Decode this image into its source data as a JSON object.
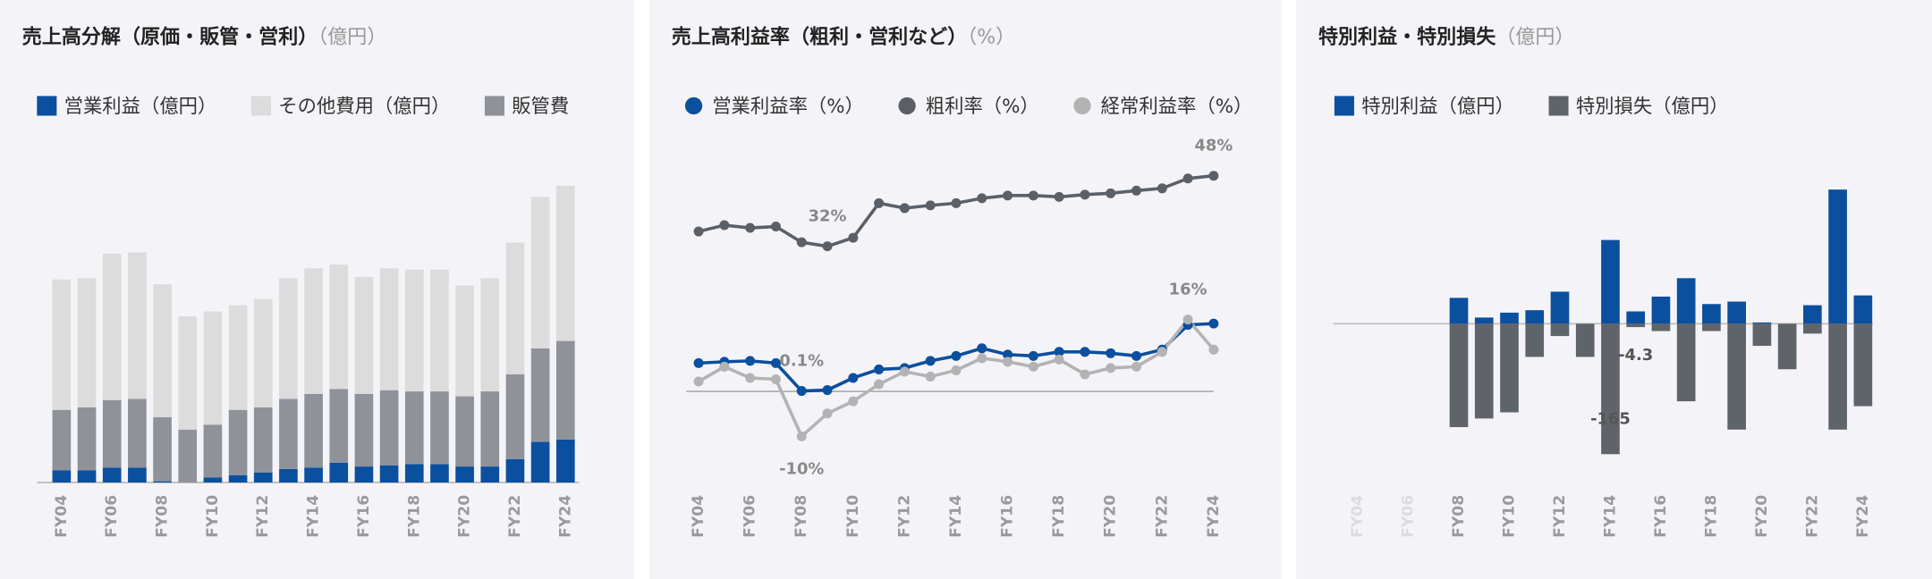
{
  "chart_data": [
    {
      "type": "stacked_bar",
      "title": "売上高分解（原価・販管・営利）",
      "subtitle": "（億円）",
      "categories": [
        "FY04",
        null,
        "FY06",
        null,
        "FY08",
        null,
        "FY10",
        null,
        "FY12",
        null,
        "FY14",
        null,
        "FY16",
        null,
        "FY18",
        null,
        "FY20",
        null,
        "FY22",
        null,
        "FY24"
      ],
      "series": [
        {
          "name": "営業利益（億円）",
          "color": "#0b4f9f",
          "values": [
            10,
            10,
            12,
            12,
            1,
            0,
            4,
            6,
            8,
            11,
            12,
            16,
            13,
            14,
            15,
            15,
            13,
            13,
            19,
            33,
            35
          ]
        },
        {
          "name": "その他費用（億円）",
          "color": "#dcdcdc",
          "values": [
            106,
            105,
            119,
            119,
            108,
            92,
            92,
            85,
            88,
            98,
            102,
            101,
            95,
            99,
            99,
            99,
            90,
            92,
            107,
            123,
            126
          ]
        },
        {
          "name": "販管費",
          "color": "#8f9399",
          "values": [
            49,
            51,
            55,
            56,
            52,
            43,
            43,
            53,
            53,
            57,
            60,
            60,
            59,
            61,
            59,
            59,
            57,
            61,
            69,
            76,
            80
          ]
        }
      ],
      "stack_order": [
        0,
        2,
        1
      ],
      "ylim": [
        0,
        260
      ]
    },
    {
      "type": "line",
      "title": "売上高利益率（粗利・営利など）",
      "subtitle": "（%）",
      "categories": [
        "FY04",
        null,
        "FY06",
        null,
        "FY08",
        null,
        "FY10",
        null,
        "FY12",
        null,
        "FY14",
        null,
        "FY16",
        null,
        "FY18",
        null,
        "FY20",
        null,
        "FY22",
        null,
        "FY24"
      ],
      "series": [
        {
          "name": "営業利益率（%）",
          "color": "#0b4f9f",
          "values": [
            6.3,
            6.6,
            6.8,
            6.3,
            0.1,
            0.3,
            3.0,
            4.9,
            5.2,
            6.8,
            7.9,
            9.6,
            8.2,
            7.9,
            8.8,
            8.8,
            8.5,
            7.9,
            9.3,
            14.8,
            15.1
          ],
          "value_labels": [
            null,
            null,
            null,
            null,
            "0.1%",
            null,
            null,
            null,
            null,
            null,
            null,
            null,
            null,
            null,
            null,
            null,
            null,
            null,
            null,
            null,
            null
          ]
        },
        {
          "name": "粗利率（%）",
          "color": "#5b6068",
          "values": [
            35.6,
            37.0,
            36.4,
            36.7,
            33.2,
            32.3,
            34.2,
            41.9,
            40.8,
            41.4,
            41.9,
            43.0,
            43.6,
            43.6,
            43.3,
            43.8,
            44.1,
            44.7,
            45.2,
            47.4,
            48
          ],
          "value_labels": [
            null,
            null,
            null,
            null,
            null,
            "32%",
            null,
            null,
            null,
            null,
            null,
            null,
            null,
            null,
            null,
            null,
            null,
            null,
            null,
            null,
            "48%"
          ]
        },
        {
          "name": "経常利益率（%）",
          "color": "#b3b3b3",
          "values": [
            2.2,
            5.5,
            3.0,
            2.7,
            -10,
            -4.9,
            -2.2,
            1.6,
            4.4,
            3.3,
            4.7,
            7.4,
            6.6,
            5.5,
            7.1,
            3.8,
            5.2,
            5.5,
            8.8,
            16,
            9.3
          ],
          "value_labels": [
            null,
            null,
            null,
            null,
            "-10%",
            null,
            null,
            null,
            null,
            null,
            null,
            null,
            null,
            null,
            null,
            null,
            null,
            null,
            null,
            "16%",
            null
          ]
        }
      ],
      "ylim": [
        -15,
        52
      ]
    },
    {
      "type": "bar",
      "title": "特別利益・特別損失",
      "subtitle": "（億円）",
      "categories": [
        "FY04",
        null,
        "FY06",
        null,
        "FY08",
        null,
        "FY10",
        null,
        "FY12",
        null,
        "FY14",
        null,
        "FY16",
        null,
        "FY18",
        null,
        "FY20",
        null,
        "FY22",
        null,
        "FY24"
      ],
      "series": [
        {
          "name": "特別利益（億円）",
          "color": "#0b4f9f",
          "values": [
            null,
            null,
            null,
            null,
            32.7,
            7.8,
            14.0,
            17.1,
            40.5,
            0,
            105.9,
            15.6,
            34.3,
            57.6,
            24.9,
            28.0,
            1.6,
            0,
            23.4,
            169.7,
            35.8
          ]
        },
        {
          "name": "特別損失（億円）",
          "color": "#5f646b",
          "values": [
            null,
            null,
            null,
            null,
            -130.8,
            -119.9,
            -112.1,
            -42.0,
            -15.6,
            -42.0,
            -165,
            -4.3,
            -9.3,
            -98.1,
            -9.3,
            -133.9,
            -28.0,
            -57.6,
            -12.5,
            -133.9,
            -104.3
          ],
          "value_labels": [
            null,
            null,
            null,
            null,
            null,
            null,
            null,
            null,
            null,
            null,
            "-165",
            "-4.3",
            null,
            null,
            null,
            null,
            null,
            null,
            null,
            null,
            null
          ]
        }
      ],
      "ylim": [
        -175,
        175
      ]
    }
  ]
}
